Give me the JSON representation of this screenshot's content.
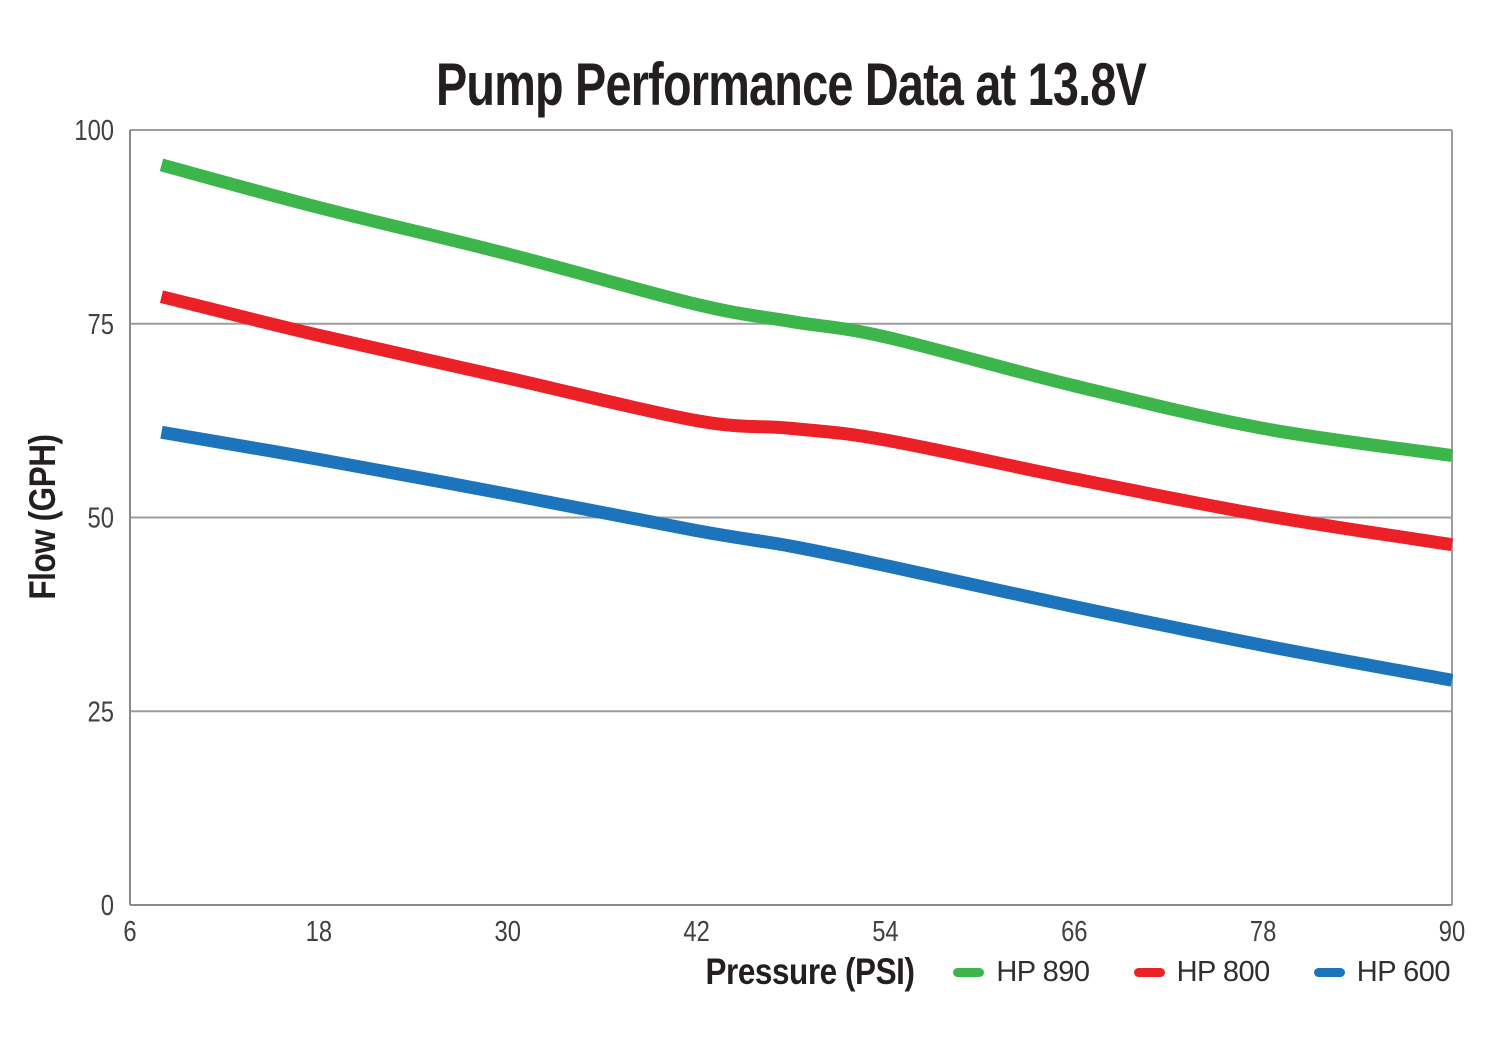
{
  "chart_data": {
    "type": "line",
    "title": "Pump Performance Data at 13.8V",
    "xlabel": "Pressure (PSI)",
    "ylabel": "Flow (GPH)",
    "xlim": [
      6,
      90
    ],
    "ylim": [
      0,
      100
    ],
    "x_ticks": [
      6,
      18,
      30,
      42,
      54,
      66,
      78,
      90
    ],
    "y_ticks": [
      0,
      25,
      50,
      75,
      100
    ],
    "grid": "horizontal gridlines at every y tick, plot box closed on all four sides",
    "legend_position": "bottom right, below x axis, horizontal row",
    "x": [
      8,
      18,
      30,
      42,
      48,
      54,
      66,
      78,
      90
    ],
    "series": [
      {
        "name": "HP 890",
        "color": "#3cb54a",
        "values": [
          95.5,
          90,
          84,
          77.5,
          75.3,
          73.3,
          67,
          61.5,
          58
        ]
      },
      {
        "name": "HP 800",
        "color": "#ec2127",
        "values": [
          78.5,
          73.5,
          68,
          62.5,
          61.5,
          60,
          55,
          50.3,
          46.5
        ]
      },
      {
        "name": "HP 600",
        "color": "#1c75bc",
        "values": [
          61,
          57.5,
          53,
          48.3,
          46.3,
          43.8,
          38.5,
          33.5,
          29
        ]
      }
    ]
  },
  "colors": {
    "grid": "#9d9d9d",
    "axis": "#8a8a8a",
    "tick_text": "#414042",
    "title_text": "#231f20",
    "axis_label_text": "#231f20",
    "legend_text": "#2f2f2f"
  }
}
